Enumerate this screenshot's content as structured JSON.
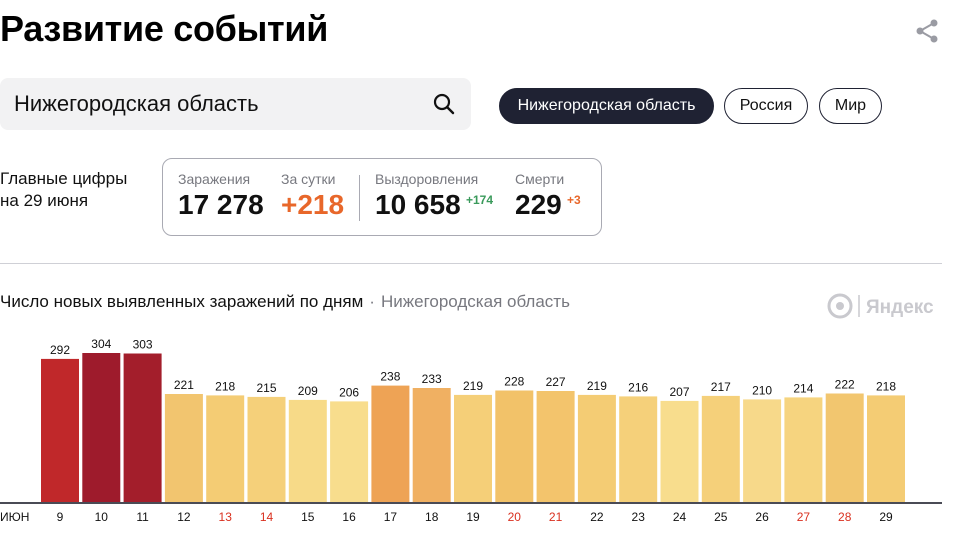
{
  "header": {
    "title": "Развитие событий"
  },
  "search": {
    "value": "Нижегородская область"
  },
  "region_tabs": [
    {
      "label": "Нижегородская область",
      "active": true
    },
    {
      "label": "Россия",
      "active": false
    },
    {
      "label": "Мир",
      "active": false
    }
  ],
  "main_figures": {
    "label_line1": "Главные цифры",
    "label_line2": "на 29 июня",
    "infections_label": "Заражения",
    "infections_value": "17 278",
    "daily_label": "За сутки",
    "daily_value": "+218",
    "recovered_label": "Выздоровления",
    "recovered_value": "10 658",
    "recovered_delta": "+174",
    "deaths_label": "Смерти",
    "deaths_value": "229",
    "deaths_delta": "+3"
  },
  "colors": {
    "daily_accent": "#e8672a",
    "recovered_delta": "#3a9a5b",
    "deaths_delta": "#e8672a",
    "weekend_tick": "#d9301f",
    "tab_active_bg": "#1f2233"
  },
  "chart_data": {
    "type": "bar",
    "title": "Число новых выявленных заражений по дням",
    "subtitle": "Нижегородская область",
    "watermark": "Яндекс",
    "month_label": "июн",
    "categories": [
      "9",
      "10",
      "11",
      "12",
      "13",
      "14",
      "15",
      "16",
      "17",
      "18",
      "19",
      "20",
      "21",
      "22",
      "23",
      "24",
      "25",
      "26",
      "27",
      "28",
      "29"
    ],
    "values": [
      292,
      304,
      303,
      221,
      218,
      215,
      209,
      206,
      238,
      233,
      219,
      228,
      227,
      219,
      216,
      207,
      217,
      210,
      214,
      222,
      218
    ],
    "weekend_days": [
      "13",
      "14",
      "20",
      "21",
      "27",
      "28"
    ],
    "bar_colors": [
      "#c0282a",
      "#9e1b2c",
      "#a31e2b",
      "#f2c56f",
      "#f4cc74",
      "#f5d07a",
      "#f7da88",
      "#f8dd8d",
      "#eea355",
      "#f0b062",
      "#f5cf78",
      "#f2c269",
      "#f3c46c",
      "#f4cc74",
      "#f5d07a",
      "#f8dd8d",
      "#f5d07a",
      "#f7d98a",
      "#f6d47f",
      "#f2c66f",
      "#f4cc74"
    ],
    "ylim": [
      0,
      320
    ],
    "grid": false,
    "legend": "none"
  }
}
